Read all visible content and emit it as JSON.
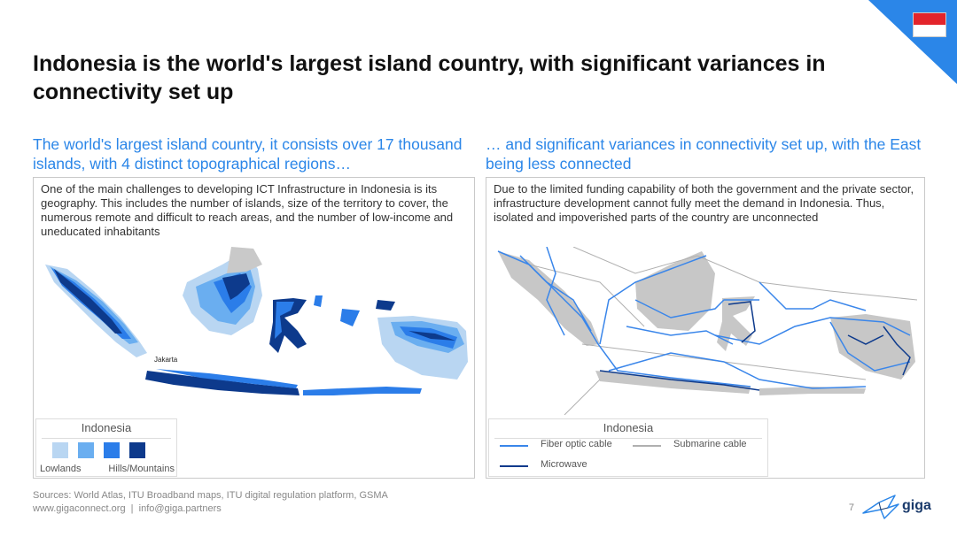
{
  "header": {
    "title": "Indonesia is the world's largest island country, with significant variances in connectivity set up",
    "flag_colors": {
      "top": "#e3242b",
      "bottom": "#ffffff"
    },
    "accent": "#2b86e8"
  },
  "left": {
    "subheading": "The world's largest island country, it consists over 17 thousand islands, with 4 distinct topographical regions…",
    "body": "One of the main challenges to developing ICT Infrastructure in Indonesia is its geography. This includes the number of islands, size of the territory to cover, the numerous remote and difficult to reach areas, and the number of low-income and uneducated inhabitants",
    "map_label": "Jakarta",
    "legend": {
      "title": "Indonesia",
      "low_label": "Lowlands",
      "high_label": "Hills/Mountains",
      "swatches": [
        "#b9d6f2",
        "#6aaef0",
        "#2b7de9",
        "#0d3a8c"
      ]
    }
  },
  "right": {
    "subheading": "… and significant variances in connectivity set up, with the East being less connected",
    "body": "Due to the limited funding capability of both the government and the private sector, infrastructure development cannot fully meet the demand in Indonesia. Thus, isolated and impoverished parts of the country are unconnected",
    "legend": {
      "title": "Indonesia",
      "fiber": "Fiber optic cable",
      "submarine": "Submarine cable",
      "microwave": "Microwave",
      "colors": {
        "fiber": "#3a86ea",
        "submarine": "#b0b0b0",
        "microwave": "#0d3a8c"
      }
    }
  },
  "footer": {
    "sources": "Sources: World Atlas, ITU Broadband maps, ITU digital regulation platform, GSMA",
    "links": "www.gigaconnect.org  |  info@giga.partners",
    "page": "7",
    "brand": "giga"
  }
}
